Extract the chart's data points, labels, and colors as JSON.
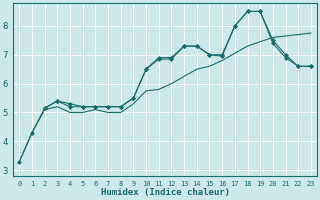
{
  "xlabel": "Humidex (Indice chaleur)",
  "bg_color": "#cce8e8",
  "grid_color": "#ffffff",
  "line_color": "#1a6b6b",
  "xlim": [
    -0.5,
    23.5
  ],
  "ylim": [
    2.8,
    8.8
  ],
  "yticks": [
    3,
    4,
    5,
    6,
    7,
    8
  ],
  "xticks": [
    0,
    1,
    2,
    3,
    4,
    5,
    6,
    7,
    8,
    9,
    10,
    11,
    12,
    13,
    14,
    15,
    16,
    17,
    18,
    19,
    20,
    21,
    22,
    23
  ],
  "line1_x": [
    0,
    1,
    2,
    3,
    4,
    5,
    6,
    7,
    8,
    9,
    10,
    11,
    12,
    13,
    14,
    15,
    16,
    17,
    18,
    19,
    20,
    21,
    22,
    23
  ],
  "line1_y": [
    3.3,
    4.3,
    5.15,
    5.4,
    5.3,
    5.2,
    5.2,
    5.2,
    5.2,
    5.5,
    6.5,
    6.9,
    6.9,
    7.3,
    7.3,
    7.0,
    7.0,
    8.0,
    8.5,
    8.5,
    7.5,
    7.0,
    6.6,
    6.6
  ],
  "line2_x": [
    0,
    1,
    2,
    3,
    4,
    5,
    6,
    7,
    8,
    9,
    10,
    11,
    12,
    13,
    14,
    15,
    16,
    17,
    18,
    19,
    20,
    21,
    22,
    23
  ],
  "line2_y": [
    3.3,
    4.3,
    5.1,
    5.2,
    5.0,
    5.0,
    5.1,
    5.0,
    5.0,
    5.3,
    5.75,
    5.8,
    6.0,
    6.25,
    6.5,
    6.6,
    6.8,
    7.05,
    7.3,
    7.45,
    7.6,
    7.65,
    7.7,
    7.75
  ],
  "line3_x": [
    2,
    3,
    4,
    5,
    6,
    7,
    8,
    9,
    10,
    11,
    12,
    13,
    14,
    15,
    16,
    17,
    18,
    19,
    20,
    21,
    22,
    23
  ],
  "line3_y": [
    5.15,
    5.4,
    5.2,
    5.2,
    5.2,
    5.2,
    5.2,
    5.5,
    6.5,
    6.85,
    6.85,
    7.3,
    7.3,
    7.0,
    6.95,
    8.0,
    8.5,
    8.5,
    7.4,
    6.9,
    6.6,
    6.6
  ]
}
